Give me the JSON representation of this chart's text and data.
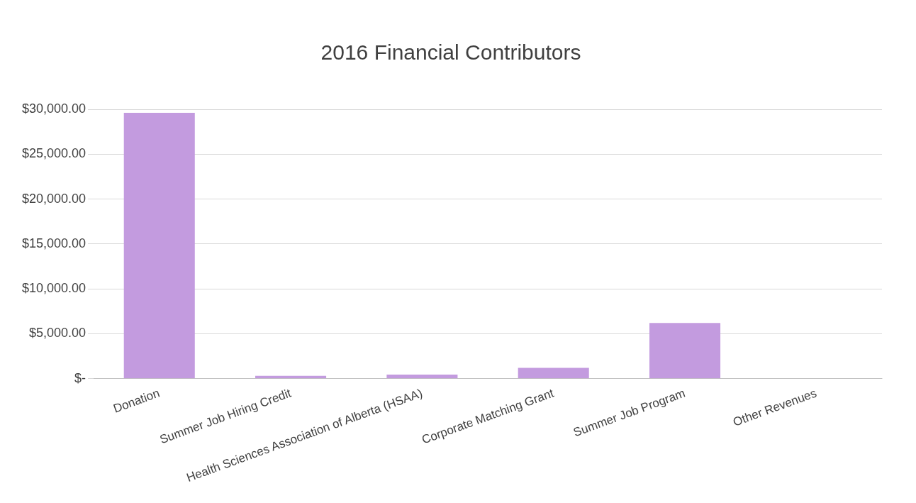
{
  "chart_data": {
    "type": "bar",
    "title": "2016 Financial Contributors",
    "categories": [
      "Donation",
      "Summer Job Hiring Credit",
      "Health Sciences Association of Alberta (HSAA)",
      "Corporate Matching Grant",
      "Summer Job Program",
      "Other Revenues"
    ],
    "values": [
      29600,
      300,
      450,
      1200,
      6200,
      null
    ],
    "color": "#c39bdf",
    "ylim": [
      0,
      30000
    ],
    "yticks": [
      {
        "value": 0,
        "label": "$-"
      },
      {
        "value": 5000,
        "label": "$5,000.00"
      },
      {
        "value": 10000,
        "label": "$10,000.00"
      },
      {
        "value": 15000,
        "label": "$15,000.00"
      },
      {
        "value": 20000,
        "label": "$20,000.00"
      },
      {
        "value": 25000,
        "label": "$25,000.00"
      },
      {
        "value": 30000,
        "label": "$30,000.00"
      }
    ],
    "grid": "y",
    "legend": false
  }
}
